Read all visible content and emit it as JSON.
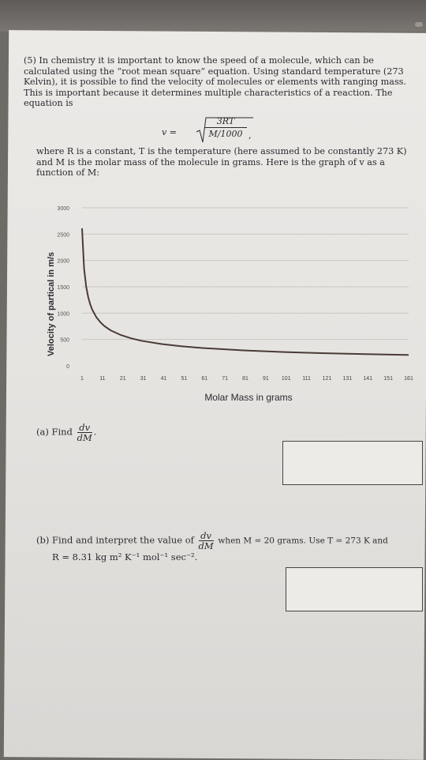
{
  "problem": {
    "number": "(5)",
    "intro": "In chemistry it is important to know the speed of a molecule, which can be calculated using the “root mean square” equation. Using standard temperature (273 Kelvin), it is possible to find the velocity of molecules or elements with ranging mass. This is important because it determines multiple characteristics of a reaction. The equation is",
    "formula": {
      "lhs": "v =",
      "numerator": "3RT",
      "denominator": "M/1000",
      "trailing": ","
    },
    "after_formula": "where R is a constant, T is the temperature (here assumed to be constantly 273 K) and M is the molar mass of the molecule in grams. Here is the graph of v as a function of M:"
  },
  "chart_data": {
    "type": "line",
    "xlabel": "Molar Mass in grams",
    "ylabel": "Velocity of partical in m/s",
    "ylim": [
      0,
      3000
    ],
    "yticks": [
      0,
      500,
      1000,
      1500,
      2000,
      2500,
      3000
    ],
    "xticks": [
      1,
      11,
      21,
      31,
      41,
      51,
      61,
      71,
      81,
      91,
      101,
      111,
      121,
      131,
      141,
      151,
      161
    ],
    "xlim": [
      1,
      161
    ],
    "grid": true,
    "series": [
      {
        "x": [
          1,
          2,
          3,
          4,
          5,
          6,
          8,
          10,
          12,
          15,
          20,
          25,
          30,
          40,
          50,
          60,
          80,
          100,
          120,
          140,
          161
        ],
        "y": [
          2608,
          1844,
          1506,
          1304,
          1166,
          1065,
          922,
          825,
          753,
          673,
          583,
          522,
          476,
          412,
          369,
          337,
          292,
          261,
          238,
          220,
          205
        ]
      }
    ]
  },
  "part_a": {
    "label": "(a) Find",
    "frac_num": "dv",
    "frac_den": "dM",
    "end": "."
  },
  "part_b": {
    "label": "(b) Find and interpret the value of",
    "frac_num": "dv",
    "frac_den": "dM",
    "condition": "when M = 20 grams. Use T = 273 K and",
    "line2": "R = 8.31 kg m² K⁻¹ mol⁻¹ sec⁻²."
  }
}
